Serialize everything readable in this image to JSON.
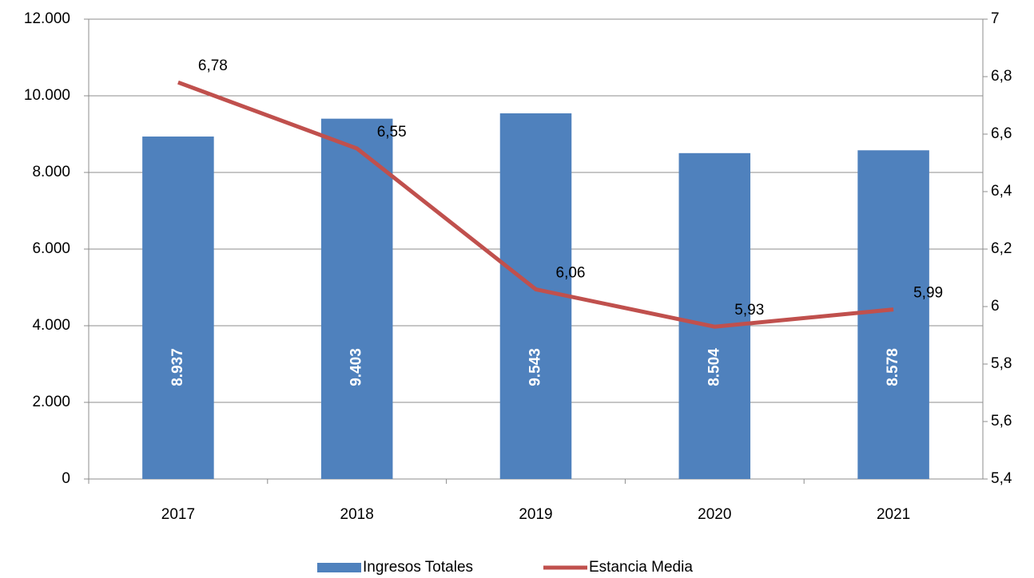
{
  "chart_data": {
    "type": "bar",
    "categories": [
      "2017",
      "2018",
      "2019",
      "2020",
      "2021"
    ],
    "series": [
      {
        "name": "Ingresos Totales",
        "color": "#4f81bd",
        "type": "bar",
        "values": [
          8937,
          9403,
          9543,
          8504,
          8578
        ],
        "value_labels": [
          "8.937",
          "9.403",
          "9.543",
          "8.504",
          "8.578"
        ]
      },
      {
        "name": "Estancia Media",
        "color": "#c0504d",
        "type": "line",
        "axis": "y2",
        "values": [
          6.78,
          6.55,
          6.06,
          5.93,
          5.99
        ],
        "value_labels": [
          "6,78",
          "6,55",
          "6,06",
          "5,93",
          "5,99"
        ]
      }
    ],
    "ylim": [
      0,
      12000
    ],
    "yticks": [
      0,
      {
        "value": 2000,
        "label": "2.000"
      },
      {
        "value": 4000,
        "label": "4.000"
      },
      {
        "value": 6000,
        "label": "6.000"
      },
      {
        "value": 8000,
        "label": "8.000"
      },
      {
        "value": 10000,
        "label": "10.000"
      },
      {
        "value": 12000,
        "label": "12.000"
      }
    ],
    "y2lim": [
      5.4,
      7
    ],
    "y2ticks": [
      {
        "value": 5.4,
        "label": "5,4"
      },
      {
        "value": 5.6,
        "label": "5,6"
      },
      {
        "value": 5.8,
        "label": "5,8"
      },
      6,
      {
        "value": 6.2,
        "label": "6,2"
      },
      {
        "value": 6.4,
        "label": "6,4"
      },
      {
        "value": 6.6,
        "label": "6,6"
      },
      {
        "value": 6.8,
        "label": "6,8"
      },
      7
    ],
    "grid": true,
    "legend": "bottom"
  }
}
